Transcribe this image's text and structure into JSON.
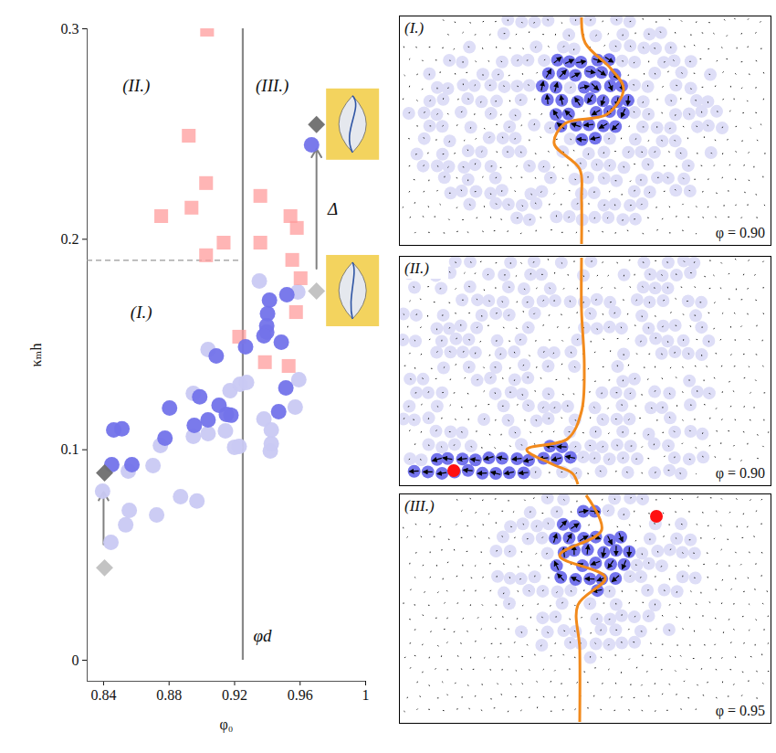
{
  "chart_data": {
    "type": "scatter",
    "x_label": "φ₀",
    "y_label": "κₘh",
    "xlim": [
      0.83,
      1
    ],
    "ylim": [
      -0.01,
      0.3
    ],
    "xticks": [
      0.84,
      0.88,
      0.92,
      0.96,
      1
    ],
    "yticks": [
      0,
      0.1,
      0.2,
      0.3
    ],
    "series": [
      {
        "color": "#c9c9f3",
        "marker": "circle",
        "x": [
          0.8394,
          0.8445,
          0.8551,
          0.8557,
          0.8535,
          0.8702,
          0.8747,
          0.8724,
          0.887,
          0.897,
          0.8948,
          0.8948,
          0.9038,
          0.9038,
          0.9144,
          0.9172,
          0.92,
          0.9233,
          0.9228,
          0.9273,
          0.9351,
          0.9379,
          0.9418,
          0.9424,
          0.9424,
          0.9586,
          0.9592,
          0.957
        ],
        "y": [
          0.0803,
          0.056,
          0.0899,
          0.0712,
          0.0643,
          0.0925,
          0.102,
          0.069,
          0.0777,
          0.0756,
          0.1268,
          0.1064,
          0.1476,
          0.1077,
          0.109,
          0.1281,
          0.1012,
          0.1311,
          0.1016,
          0.132,
          0.1802,
          0.1146,
          0.0994,
          0.1029,
          0.1094,
          0.175,
          0.1333,
          0.1203
        ]
      },
      {
        "color": "#ff9c9c",
        "marker": "square",
        "x": [
          0.9032,
          0.892,
          0.8752,
          0.8937,
          0.9026,
          0.9133,
          0.9026,
          0.9357,
          0.9357,
          0.9541,
          0.958,
          0.9552,
          0.9603,
          0.9228,
          0.9385,
          0.9575,
          0.953
        ],
        "y": [
          0.2996,
          0.2492,
          0.211,
          0.215,
          0.2267,
          0.1984,
          0.1924,
          0.2206,
          0.1984,
          0.211,
          0.2054,
          0.1902,
          0.1815,
          0.1537,
          0.1416,
          0.1654,
          0.1398
        ]
      },
      {
        "color": "#7373ea",
        "marker": "circle",
        "x": [
          0.8462,
          0.8512,
          0.845,
          0.8573,
          0.8803,
          0.8775,
          0.8987,
          0.8954,
          0.9038,
          0.9088,
          0.9105,
          0.915,
          0.9178,
          0.9267,
          0.9413,
          0.9401,
          0.9396,
          0.9396,
          0.9379,
          0.9519,
          0.9485,
          0.9513,
          0.9469,
          0.967
        ],
        "y": [
          0.1094,
          0.1099,
          0.0929,
          0.0929,
          0.1198,
          0.1055,
          0.1251,
          0.1116,
          0.1142,
          0.1446,
          0.1211,
          0.1168,
          0.1164,
          0.1489,
          0.1711,
          0.1646,
          0.1589,
          0.1559,
          0.1541,
          0.1737,
          0.1511,
          0.1294,
          0.1181,
          0.2449
        ]
      },
      {
        "color": "#c0c0c0",
        "marker": "diamond",
        "x": [
          0.8406,
          0.97
        ],
        "y": [
          0.0439,
          0.1754
        ]
      },
      {
        "color": "#6e6e6e",
        "marker": "diamond",
        "x": [
          0.8406,
          0.97
        ],
        "y": [
          0.089,
          0.2545
        ]
      }
    ],
    "annotations": {
      "lines": [
        {
          "x": 0.925,
          "y1": 0,
          "y2": 0.3,
          "color": "#888888",
          "line_style": "solid"
        },
        {
          "y": 0.19,
          "x1": 0.83,
          "x2": 0.925,
          "color": "#999999",
          "line_style": "dashed"
        }
      ],
      "arrows": [
        {
          "x": 0.84,
          "y1": 0.055,
          "y2": 0.08,
          "color": "#808080"
        },
        {
          "x": 0.97,
          "y1": 0.186,
          "y2": 0.243,
          "color": "#808080"
        }
      ],
      "texts": [
        {
          "text": "(II.)",
          "x": 0.86,
          "y": 0.273
        },
        {
          "text": "(III.)",
          "x": 0.943,
          "y": 0.273
        },
        {
          "text": "(I.)",
          "x": 0.863,
          "y": 0.1654
        },
        {
          "text": "φd",
          "x": 0.937,
          "y": 0.0117
        },
        {
          "text": "Δ",
          "x": 0.98,
          "y": 0.2145
        }
      ]
    }
  },
  "panels": [
    {
      "label": "(I.)",
      "phi_label": "φ = 0.90"
    },
    {
      "label": "(II.)",
      "phi_label": "φ = 0.90"
    },
    {
      "label": "(III.)",
      "phi_label": "φ = 0.95"
    }
  ]
}
